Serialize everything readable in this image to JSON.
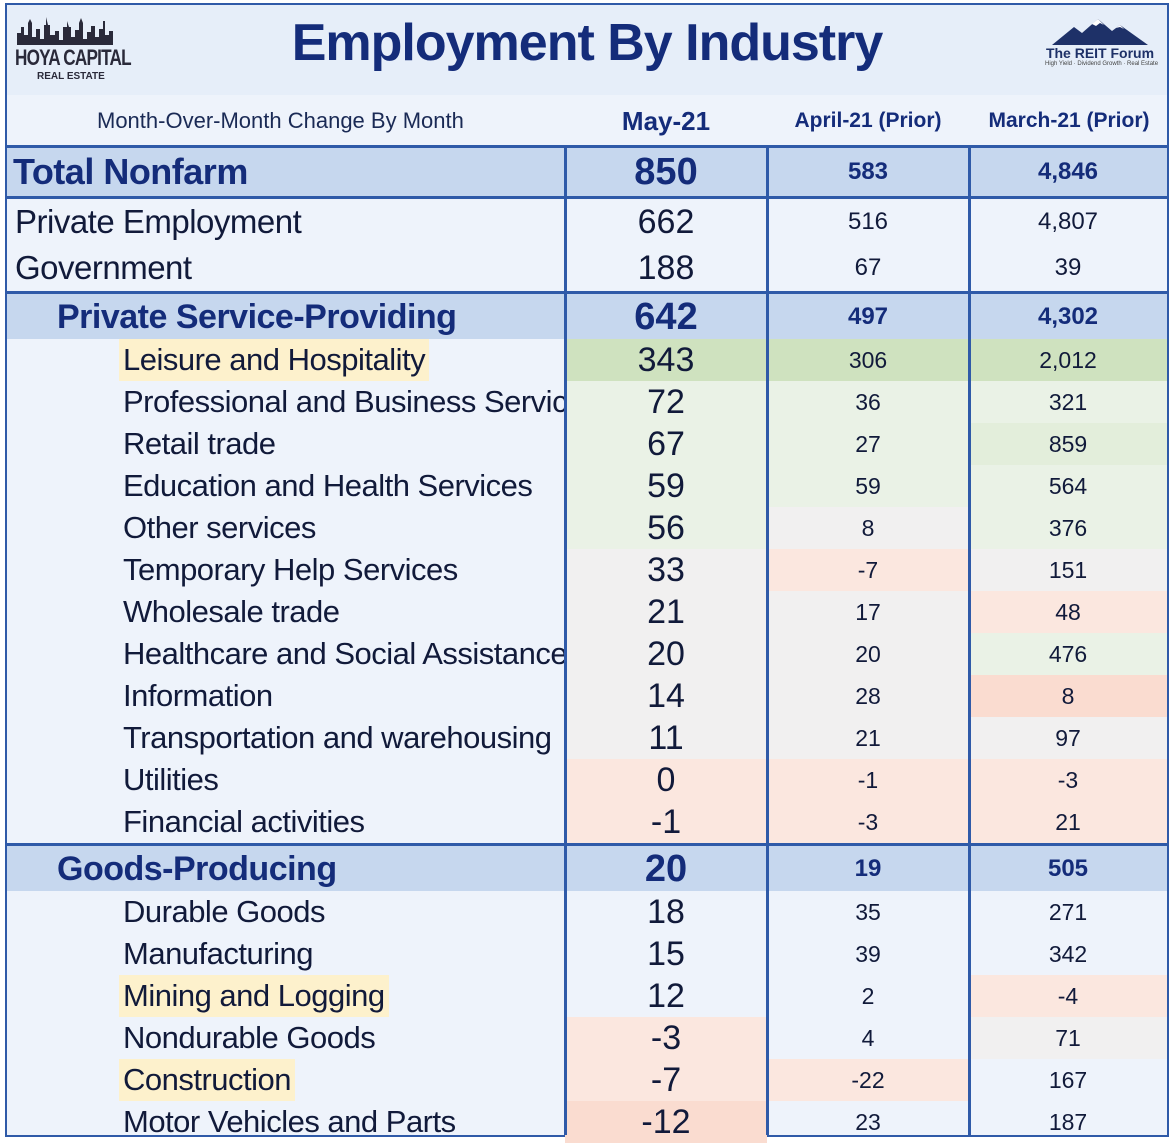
{
  "header": {
    "title": "Employment By Industry",
    "left_logo": {
      "brand": "HOYA CAPITAL",
      "sub": "REAL ESTATE"
    },
    "right_logo": {
      "brand": "The REIT Forum",
      "tag": "High Yield · Dividend Growth · Real Estate"
    }
  },
  "columns": {
    "subtitle": "Month-Over-Month Change By Month",
    "may": "May-21",
    "apr": "April-21 (Prior)",
    "mar": "March-21 (Prior)"
  },
  "rows": [
    {
      "label": "Total Nonfarm",
      "may": "850",
      "apr": "583",
      "mar": "4,846"
    },
    {
      "label": "Private Employment",
      "may": "662",
      "apr": "516",
      "mar": "4,807"
    },
    {
      "label": "Government",
      "may": "188",
      "apr": "67",
      "mar": "39"
    },
    {
      "label": "Private Service-Providing",
      "may": "642",
      "apr": "497",
      "mar": "4,302"
    },
    {
      "label": "Leisure and Hospitality",
      "may": "343",
      "apr": "306",
      "mar": "2,012"
    },
    {
      "label": "Professional and Business Services",
      "may": "72",
      "apr": "36",
      "mar": "321"
    },
    {
      "label": "Retail trade",
      "may": "67",
      "apr": "27",
      "mar": "859"
    },
    {
      "label": "Education and Health Services",
      "may": "59",
      "apr": "59",
      "mar": "564"
    },
    {
      "label": "Other services",
      "may": "56",
      "apr": "8",
      "mar": "376"
    },
    {
      "label": "Temporary Help Services",
      "may": "33",
      "apr": "-7",
      "mar": "151"
    },
    {
      "label": "Wholesale trade",
      "may": "21",
      "apr": "17",
      "mar": "48"
    },
    {
      "label": "Healthcare and Social Assistance",
      "may": "20",
      "apr": "20",
      "mar": "476"
    },
    {
      "label": "Information",
      "may": "14",
      "apr": "28",
      "mar": "8"
    },
    {
      "label": "Transportation and warehousing",
      "may": "11",
      "apr": "21",
      "mar": "97"
    },
    {
      "label": "Utilities",
      "may": "0",
      "apr": "-1",
      "mar": "-3"
    },
    {
      "label": "Financial activities",
      "may": "-1",
      "apr": "-3",
      "mar": "21"
    },
    {
      "label": "Goods-Producing",
      "may": "20",
      "apr": "19",
      "mar": "505"
    },
    {
      "label": "Durable Goods",
      "may": "18",
      "apr": "35",
      "mar": "271"
    },
    {
      "label": "Manufacturing",
      "may": "15",
      "apr": "39",
      "mar": "342"
    },
    {
      "label": "Mining and Logging",
      "may": "12",
      "apr": "2",
      "mar": "-4"
    },
    {
      "label": "Nondurable Goods",
      "may": "-3",
      "apr": "4",
      "mar": "71"
    },
    {
      "label": "Construction",
      "may": "-7",
      "apr": "-22",
      "mar": "167"
    },
    {
      "label": "Motor Vehicles and Parts",
      "may": "-12",
      "apr": "23",
      "mar": "187"
    }
  ]
}
